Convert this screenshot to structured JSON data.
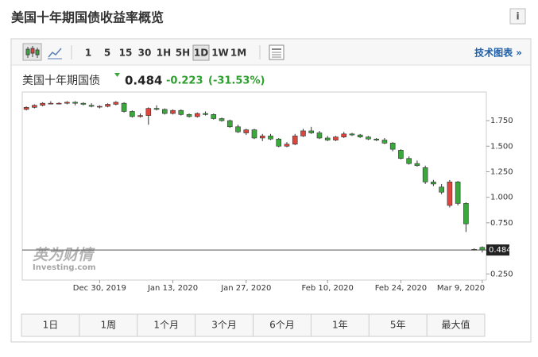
{
  "header": {
    "title": "美国十年期国债收益率概览"
  },
  "toolbar": {
    "intervals": [
      "1",
      "5",
      "15",
      "30",
      "1H",
      "5H",
      "1D",
      "1W",
      "1M"
    ],
    "selected_interval": "1D",
    "link": "技术图表 »"
  },
  "quote": {
    "name": "美国十年期国债",
    "price": "0.484",
    "change": "-0.223",
    "change_pct": "(-31.53%)"
  },
  "watermark": [
    "英为财情",
    "Investing.com"
  ],
  "chart_data": {
    "type": "candlestick",
    "categories": [
      null,
      null,
      null,
      null,
      null,
      null,
      null,
      null,
      null,
      "Dec 30, 2019",
      null,
      null,
      null,
      null,
      null,
      null,
      null,
      null,
      "Jan 13, 2020",
      null,
      null,
      null,
      null,
      null,
      null,
      null,
      null,
      "Jan 27, 2020",
      null,
      null,
      null,
      null,
      null,
      null,
      null,
      null,
      null,
      "Feb 10, 2020",
      null,
      null,
      null,
      null,
      null,
      null,
      null,
      null,
      "Feb 24, 2020",
      null,
      null,
      null,
      null,
      null,
      null,
      null,
      null,
      null,
      "Mar 9, 2020"
    ],
    "open": [
      1.86,
      1.88,
      1.9,
      1.92,
      1.92,
      1.92,
      1.93,
      1.92,
      1.9,
      1.89,
      1.89,
      1.91,
      1.92,
      1.84,
      1.79,
      1.8,
      1.87,
      1.86,
      1.82,
      1.85,
      1.81,
      1.79,
      1.82,
      1.81,
      1.77,
      1.75,
      1.69,
      1.63,
      1.66,
      1.58,
      1.6,
      1.57,
      1.5,
      1.52,
      1.6,
      1.65,
      1.63,
      1.58,
      1.56,
      1.59,
      1.62,
      1.61,
      1.59,
      1.57,
      1.56,
      1.53,
      1.46,
      1.38,
      1.33,
      1.29,
      1.15,
      1.1,
      0.92,
      1.15,
      0.94,
      0.49,
      0.51
    ],
    "high": [
      1.89,
      1.91,
      1.93,
      1.94,
      1.93,
      1.94,
      1.94,
      1.93,
      1.92,
      1.9,
      1.92,
      1.94,
      1.93,
      1.85,
      1.82,
      1.88,
      1.9,
      1.87,
      1.86,
      1.86,
      1.82,
      1.83,
      1.84,
      1.82,
      1.78,
      1.76,
      1.71,
      1.67,
      1.67,
      1.62,
      1.62,
      1.58,
      1.54,
      1.62,
      1.67,
      1.69,
      1.65,
      1.6,
      1.6,
      1.64,
      1.63,
      1.62,
      1.6,
      1.58,
      1.58,
      1.54,
      1.47,
      1.4,
      1.36,
      1.31,
      1.17,
      1.13,
      1.17,
      1.16,
      0.95,
      0.5,
      0.52
    ],
    "low": [
      1.85,
      1.87,
      1.89,
      1.91,
      1.91,
      1.91,
      1.9,
      1.9,
      1.88,
      1.87,
      1.88,
      1.9,
      1.83,
      1.78,
      1.78,
      1.71,
      1.85,
      1.81,
      1.81,
      1.8,
      1.78,
      1.78,
      1.8,
      1.76,
      1.74,
      1.68,
      1.63,
      1.61,
      1.57,
      1.55,
      1.56,
      1.49,
      1.49,
      1.51,
      1.59,
      1.62,
      1.57,
      1.55,
      1.55,
      1.58,
      1.6,
      1.58,
      1.56,
      1.55,
      1.52,
      1.45,
      1.37,
      1.32,
      1.3,
      1.13,
      1.11,
      1.03,
      0.9,
      0.92,
      0.66,
      0.48,
      0.46
    ],
    "close": [
      1.88,
      1.9,
      1.92,
      1.92,
      1.92,
      1.93,
      1.92,
      1.91,
      1.89,
      1.89,
      1.91,
      1.93,
      1.84,
      1.79,
      1.8,
      1.87,
      1.86,
      1.82,
      1.85,
      1.81,
      1.79,
      1.82,
      1.81,
      1.77,
      1.75,
      1.69,
      1.64,
      1.66,
      1.58,
      1.6,
      1.57,
      1.5,
      1.52,
      1.6,
      1.65,
      1.63,
      1.58,
      1.56,
      1.59,
      1.62,
      1.61,
      1.59,
      1.57,
      1.56,
      1.53,
      1.47,
      1.38,
      1.33,
      1.31,
      1.15,
      1.13,
      1.05,
      1.15,
      0.94,
      0.74,
      0.49,
      0.484
    ],
    "up_color": "#e0443c",
    "down_color": "#3aa83a",
    "ylim": [
      0.19,
      2.03
    ],
    "yticks": [
      {
        "value": 1.75,
        "label": "1.750"
      },
      {
        "value": 1.5,
        "label": "1.500"
      },
      {
        "value": 1.25,
        "label": "1.250"
      },
      {
        "value": 1.0,
        "label": "1.000"
      },
      {
        "value": 0.75,
        "label": "0.750"
      },
      {
        "value": 0.25,
        "label": "0.250"
      }
    ],
    "last_value": 0.484,
    "range_buttons": [
      "1日",
      "1周",
      "1个月",
      "3个月",
      "6个月",
      "1年",
      "5年",
      "最大值"
    ]
  }
}
